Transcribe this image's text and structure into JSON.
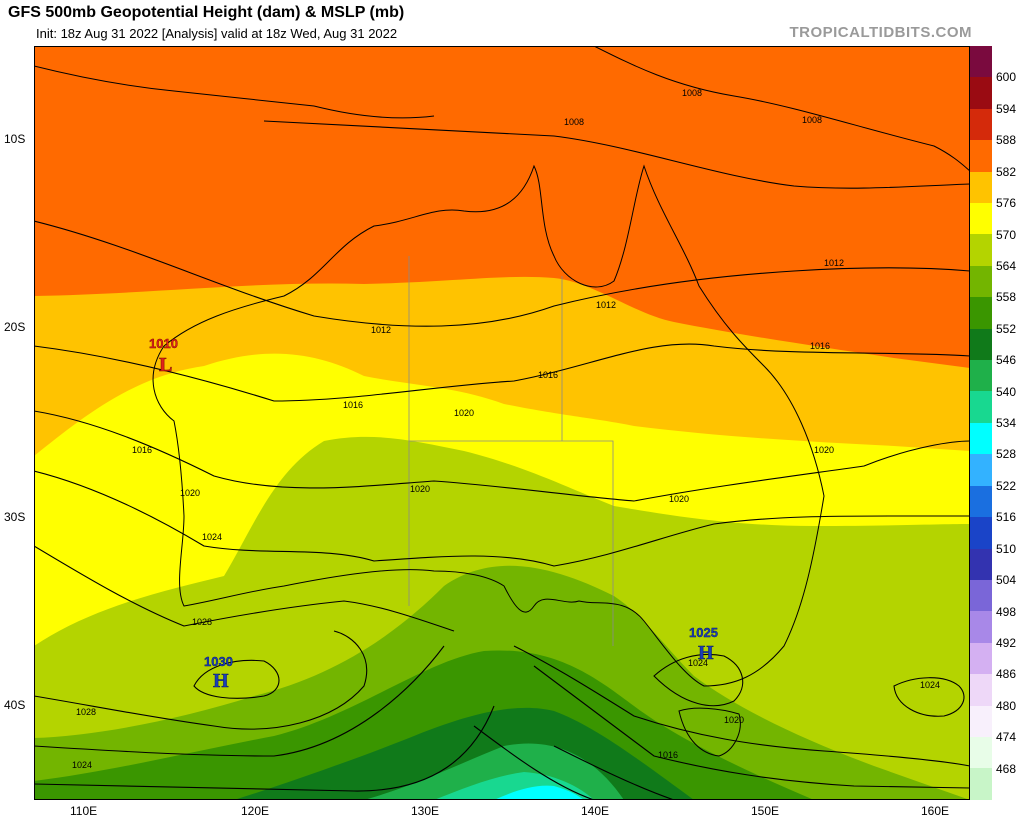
{
  "header": {
    "title": "GFS 500mb Geopotential Height (dam) & MSLP (mb)",
    "subtitle": "Init: 18z Aug 31 2022   [Analysis]   valid at 18z Wed, Aug 31 2022",
    "brand": "TROPICALTIDBITS.COM"
  },
  "axes": {
    "lat_labels": [
      "10S",
      "20S",
      "30S",
      "40S"
    ],
    "lon_labels": [
      "110E",
      "120E",
      "130E",
      "140E",
      "150E",
      "160E"
    ]
  },
  "colorbar": {
    "labels": [
      "600",
      "594",
      "588",
      "582",
      "576",
      "570",
      "564",
      "558",
      "552",
      "546",
      "540",
      "534",
      "528",
      "522",
      "516",
      "510",
      "504",
      "498",
      "492",
      "486",
      "480",
      "474",
      "468"
    ],
    "colors": [
      "#7a0a3e",
      "#9a0b12",
      "#d42a0b",
      "#ff6a00",
      "#ffc300",
      "#ffff00",
      "#b4d400",
      "#73b500",
      "#3a9600",
      "#107a1a",
      "#1fb04a",
      "#18d890",
      "#00ffff",
      "#33b2ff",
      "#1a6fe0",
      "#1a44c8",
      "#3333b0",
      "#7a66d8",
      "#a888e8",
      "#d4b0f2",
      "#eed8f8",
      "#f8f0fc",
      "#e8fde8",
      "#c8f5c8"
    ]
  },
  "pressure_centers": [
    {
      "value": "1010",
      "letter": "L",
      "color": "#e0231b"
    },
    {
      "value": "1030",
      "letter": "H",
      "color": "#1a3fb8"
    },
    {
      "value": "1025",
      "letter": "H",
      "color": "#1a3fb8"
    }
  ],
  "isobar_labels": [
    "1008",
    "1008",
    "1008",
    "1012",
    "1012",
    "1012",
    "1016",
    "1016",
    "1016",
    "1016",
    "1020",
    "1020",
    "1020",
    "1020",
    "1020",
    "1024",
    "1024",
    "1024",
    "1024",
    "1028",
    "1028",
    "1016"
  ]
}
